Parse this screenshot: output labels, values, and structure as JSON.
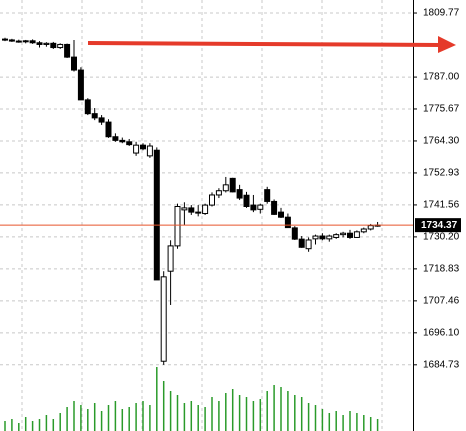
{
  "chart_data": {
    "type": "candlestick",
    "open": [
      1800.5,
      1800.2,
      1799.8,
      1799.6,
      1799.9,
      1799.2,
      1798.6,
      1799.0,
      1797.5,
      1798.6,
      1794.1,
      1789.5,
      1778.9,
      1774.0,
      1772.5,
      1771.0,
      1765.8,
      1764.5,
      1764.0,
      1760.0,
      1762.8,
      1759.0,
      1761.0,
      1686.0,
      1718.0,
      1727.0,
      1739.8,
      1740.5,
      1739.0,
      1738.5,
      1741.5,
      1745.1,
      1746.6,
      1751.0,
      1747.0,
      1745.0,
      1741.5,
      1740.0,
      1747.0,
      1742.8,
      1739.0,
      1737.2,
      1733.4,
      1729.4,
      1726.0,
      1729.5,
      1730.5,
      1729.5,
      1730.0,
      1731.0,
      1731.5,
      1730.0,
      1732.0,
      1733.0,
      1734.2
    ],
    "high": [
      1801.0,
      1800.6,
      1800.3,
      1800.2,
      1800.4,
      1799.8,
      1799.4,
      1799.5,
      1799.0,
      1798.9,
      1800.2,
      1790.5,
      1779.5,
      1776.0,
      1773.5,
      1772.0,
      1767.0,
      1765.5,
      1765.0,
      1764.0,
      1763.5,
      1763.5,
      1762.0,
      1718.0,
      1729.0,
      1742.0,
      1742.5,
      1741.5,
      1741.5,
      1742.0,
      1746.0,
      1747.5,
      1751.5,
      1751.2,
      1748.7,
      1746.2,
      1745.1,
      1742.0,
      1748.0,
      1743.5,
      1740.5,
      1738.5,
      1734.0,
      1730.5,
      1730.0,
      1731.0,
      1731.5,
      1731.0,
      1731.5,
      1732.0,
      1732.7,
      1732.5,
      1733.5,
      1734.8,
      1735.5
    ],
    "low": [
      1799.8,
      1799.5,
      1799.2,
      1799.0,
      1798.8,
      1797.5,
      1797.8,
      1797.0,
      1797.0,
      1793.8,
      1789.0,
      1778.9,
      1773.5,
      1771.7,
      1770.0,
      1765.4,
      1764.0,
      1763.5,
      1762.5,
      1759.0,
      1761.0,
      1758.3,
      1714.9,
      1684.7,
      1706.0,
      1726.0,
      1734.4,
      1738.0,
      1737.5,
      1738.0,
      1741.0,
      1744.0,
      1746.0,
      1746.0,
      1743.3,
      1740.5,
      1739.0,
      1738.5,
      1742.0,
      1738.0,
      1736.9,
      1733.4,
      1729.1,
      1726.3,
      1724.9,
      1727.5,
      1729.0,
      1728.5,
      1729.5,
      1730.0,
      1729.5,
      1729.8,
      1731.5,
      1732.5,
      1733.8
    ],
    "close": [
      1800.2,
      1799.8,
      1799.6,
      1799.9,
      1799.2,
      1798.6,
      1799.0,
      1797.5,
      1798.6,
      1794.1,
      1789.5,
      1778.9,
      1774.0,
      1772.5,
      1771.0,
      1765.8,
      1764.5,
      1764.0,
      1763.0,
      1762.8,
      1761.5,
      1762.5,
      1714.9,
      1716.0,
      1727.0,
      1741.0,
      1740.5,
      1739.0,
      1738.8,
      1741.5,
      1745.1,
      1746.6,
      1748.7,
      1746.2,
      1744.0,
      1741.0,
      1739.8,
      1741.5,
      1742.8,
      1738.2,
      1737.2,
      1733.5,
      1729.4,
      1726.5,
      1729.1,
      1730.5,
      1729.5,
      1730.5,
      1731.0,
      1731.5,
      1730.0,
      1732.0,
      1733.0,
      1734.2,
      1734.37
    ],
    "volume": [
      10,
      12,
      8,
      14,
      10,
      12,
      16,
      12,
      18,
      24,
      30,
      26,
      22,
      28,
      20,
      26,
      30,
      22,
      24,
      28,
      30,
      26,
      64,
      50,
      40,
      36,
      28,
      30,
      26,
      24,
      34,
      30,
      38,
      42,
      36,
      34,
      30,
      32,
      40,
      46,
      44,
      40,
      36,
      34,
      28,
      26,
      22,
      18,
      20,
      16,
      20,
      18,
      16,
      14,
      12
    ],
    "ylim": [
      1661.2,
      1814.4
    ],
    "yticks": [
      1809.77,
      {
        "value": 1787.0,
        "label": "1787.00"
      },
      1775.67,
      {
        "value": 1764.3,
        "label": "1764.30"
      },
      1752.93,
      1741.56,
      {
        "value": 1730.2,
        "label": "1730.20"
      },
      1718.83,
      1707.46,
      {
        "value": 1696.1,
        "label": "1696.10"
      },
      1684.73
    ],
    "vlim": [
      0,
      80
    ],
    "current_price": 1734.37,
    "bull_color": "#ffffff",
    "bear_color": "#000000",
    "volume_color": "#2a9a2a",
    "price_line_color": "#e8552b",
    "grid": true
  }
}
